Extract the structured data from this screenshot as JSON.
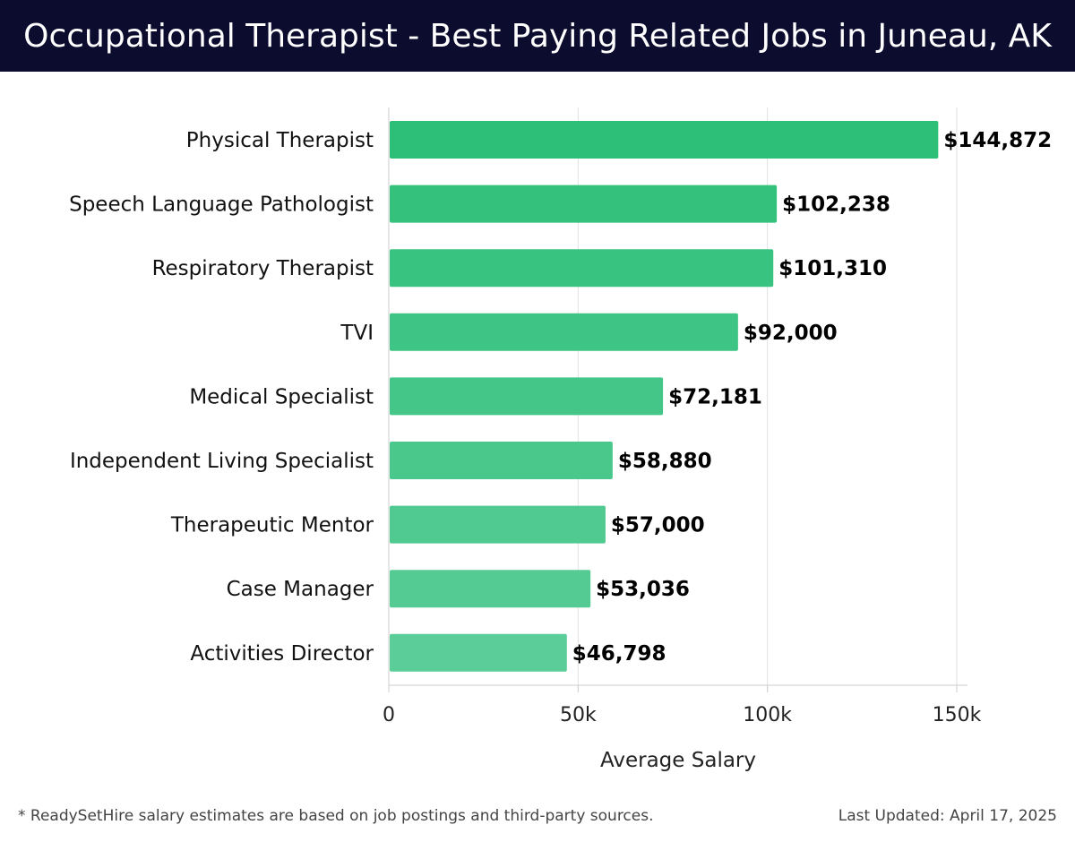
{
  "header": {
    "title": "Occupational Therapist - Best Paying Related Jobs in Juneau, AK"
  },
  "footer": {
    "note": "* ReadySetHire salary estimates are based on job postings and third-party sources.",
    "updated": "Last Updated: April 17, 2025"
  },
  "colors": {
    "header_bg": "#0b0c2e",
    "bar_top": "#2dbf78",
    "bar_bottom": "#5bcd98"
  },
  "chart_data": {
    "type": "bar",
    "orientation": "horizontal",
    "title": "",
    "xlabel": "Average Salary",
    "ylabel": "",
    "xlim": [
      0,
      150000
    ],
    "xticks": [
      {
        "value": 0,
        "label": "0"
      },
      {
        "value": 50000,
        "label": "50k"
      },
      {
        "value": 100000,
        "label": "100k"
      },
      {
        "value": 150000,
        "label": "150k"
      }
    ],
    "grid": true,
    "categories": [
      "Physical Therapist",
      "Speech Language Pathologist",
      "Respiratory Therapist",
      "TVI",
      "Medical Specialist",
      "Independent Living Specialist",
      "Therapeutic Mentor",
      "Case Manager",
      "Activities Director"
    ],
    "values": [
      144872,
      102238,
      101310,
      92000,
      72181,
      58880,
      57000,
      53036,
      46798
    ],
    "value_labels": [
      "$144,872",
      "$102,238",
      "$101,310",
      "$92,000",
      "$72,181",
      "$58,880",
      "$57,000",
      "$53,036",
      "$46,798"
    ]
  }
}
